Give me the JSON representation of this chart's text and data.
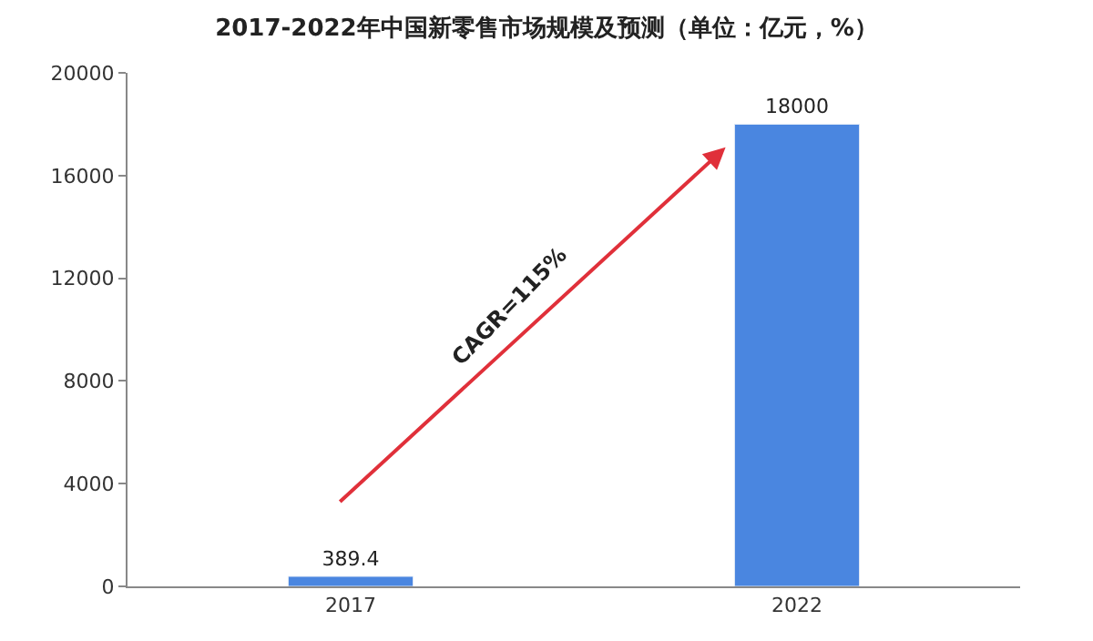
{
  "chart_data": {
    "type": "bar",
    "title": "2017-2022年中国新零售市场规模及预测（单位：亿元，%）",
    "categories": [
      "2017",
      "2022"
    ],
    "values": [
      389.4,
      18000
    ],
    "color": "#4a86e0",
    "data_labels": true,
    "ylim": [
      0,
      20000
    ],
    "yticks": [
      0,
      4000,
      8000,
      12000,
      16000,
      20000
    ],
    "legend": false,
    "annotations": [
      "CAGR=115%"
    ]
  }
}
